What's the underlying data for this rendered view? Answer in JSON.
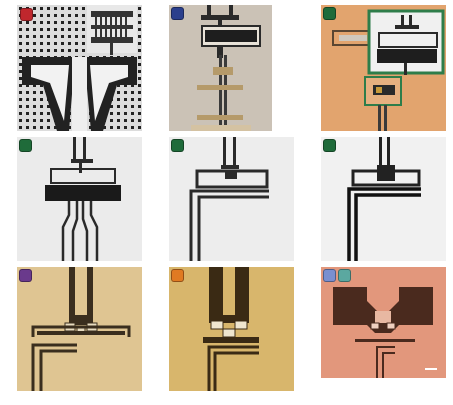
{
  "tiles": [
    {
      "id": "a",
      "badge_colors": [
        "#c0272d"
      ],
      "background": "#d8d8d8"
    },
    {
      "id": "b",
      "badge_colors": [
        "#2b3f8c"
      ],
      "background": "#c9bfb3"
    },
    {
      "id": "c",
      "badge_colors": [
        "#1f6b3a"
      ],
      "background": "#e0a06a"
    },
    {
      "id": "d",
      "badge_colors": [
        "#1f6b3a"
      ],
      "background": "#eaeaea"
    },
    {
      "id": "e",
      "badge_colors": [
        "#1f6b3a"
      ],
      "background": "#ececec"
    },
    {
      "id": "f",
      "badge_colors": [
        "#1f6b3a"
      ],
      "background": "#f0f0f0"
    },
    {
      "id": "g",
      "badge_colors": [
        "#6a3a8c"
      ],
      "background": "#ddc390"
    },
    {
      "id": "h",
      "badge_colors": [
        "#e07a22"
      ],
      "background": "#d6b46a"
    },
    {
      "id": "i",
      "badge_colors": [
        "#7a8fd0",
        "#5ba8a0"
      ],
      "background": "#e0957a"
    }
  ],
  "highlight_color": "#2e7d4a"
}
